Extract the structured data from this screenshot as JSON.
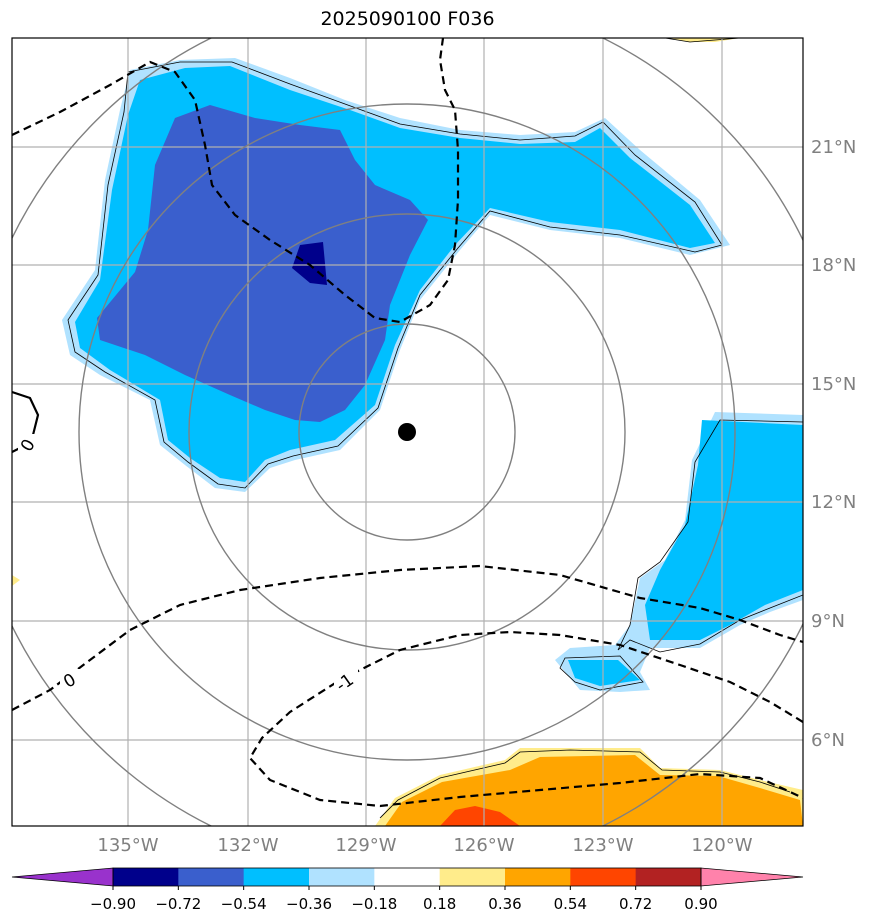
{
  "title": "2025090100 F036",
  "lon_labels": [
    "135°W",
    "132°W",
    "129°W",
    "126°W",
    "123°W",
    "120°W"
  ],
  "lat_labels": [
    "21°N",
    "18°N",
    "15°N",
    "12°N",
    "9°N",
    "6°N"
  ],
  "colorbar": {
    "labels": [
      "−0.90",
      "−0.72",
      "−0.54",
      "−0.36",
      "−0.18",
      "0.18",
      "0.36",
      "0.54",
      "0.72",
      "0.90"
    ],
    "colors": [
      "#9932cc",
      "#00008b",
      "#3a5fcd",
      "#00bfff",
      "#b0e2ff",
      "#ffffff",
      "#ffec8b",
      "#ffa500",
      "#ff4500",
      "#b22222",
      "#ff82ab"
    ]
  },
  "contour_labels": [
    "0",
    "0",
    "-1"
  ],
  "storm_center_marker": "filled-black-circle"
}
